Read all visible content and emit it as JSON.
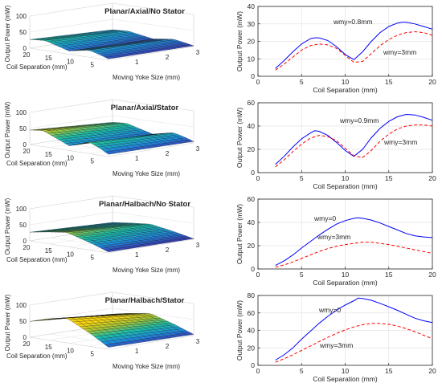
{
  "surface_axes": {
    "zlabel": "Output Power (mW)",
    "xlabel": "Coil Separation (mm)",
    "ylabel": "Moving Yoke Size (mm)",
    "z_ticks": [
      "0",
      "50",
      "100"
    ],
    "coil_ticks": [
      "20",
      "15",
      "10",
      "5"
    ],
    "yoke_ticks": [
      "1",
      "2",
      "3"
    ]
  },
  "chart_data": [
    {
      "type": "surface",
      "title": "Planar/Axial/No Stator",
      "xlabel": "Coil Separation (mm)",
      "ylabel": "Moving Yoke Size (mm)",
      "zlabel": "Output Power (mW)",
      "zlim": [
        0,
        100
      ],
      "colormap": "parula",
      "profile": [
        {
          "coil": 2,
          "power": 4
        },
        {
          "coil": 4,
          "power": 13
        },
        {
          "coil": 6.5,
          "power": 22
        },
        {
          "coil": 11,
          "power": 10
        },
        {
          "coil": 16.5,
          "power": 31
        },
        {
          "coil": 20,
          "power": 27
        }
      ]
    },
    {
      "type": "line",
      "xlabel": "Coil Separation (mm)",
      "ylabel": "Output Power (mW)",
      "xlim": [
        0,
        20
      ],
      "ylim": [
        0,
        40
      ],
      "xticks": [
        "0",
        "5",
        "10",
        "15",
        "20"
      ],
      "yticks": [
        "0",
        "10",
        "20",
        "30",
        "40"
      ],
      "grid": true,
      "series": [
        {
          "name": "wmy=0.8mm",
          "style": "solid",
          "color": "#0000ff",
          "x": [
            2,
            3,
            4,
            5,
            6,
            6.5,
            7,
            8,
            9,
            10,
            11,
            12,
            13,
            14,
            15,
            16,
            16.5,
            17,
            18,
            19,
            20
          ],
          "y": [
            4.5,
            9,
            14,
            18.5,
            21.5,
            22,
            22,
            20.5,
            17,
            12.5,
            9.5,
            14,
            20,
            25,
            28.5,
            30.5,
            31,
            31,
            30,
            28.5,
            27
          ]
        },
        {
          "name": "wmy=3mm",
          "style": "dashed",
          "color": "#ff0000",
          "x": [
            2,
            3,
            4,
            5,
            6,
            7,
            8,
            9,
            10,
            11,
            12,
            13,
            14,
            15,
            16,
            17,
            18,
            19,
            20
          ],
          "y": [
            3.5,
            7,
            11,
            15,
            17.5,
            18.5,
            18,
            16,
            12,
            8,
            8.5,
            13,
            17.5,
            21,
            23.5,
            25,
            25.5,
            25,
            23.5
          ]
        }
      ]
    },
    {
      "type": "surface",
      "title": "Planar/Axial/Stator",
      "xlabel": "Coil Separation (mm)",
      "ylabel": "Moving Yoke Size (mm)",
      "zlabel": "Output Power (mW)",
      "zlim": [
        0,
        100
      ],
      "colormap": "parula",
      "profile": [
        {
          "coil": 2,
          "power": 7
        },
        {
          "coil": 4,
          "power": 22
        },
        {
          "coil": 6.5,
          "power": 36
        },
        {
          "coil": 11,
          "power": 15
        },
        {
          "coil": 17,
          "power": 50
        },
        {
          "coil": 20,
          "power": 45
        }
      ]
    },
    {
      "type": "line",
      "xlabel": "Coil Separation (mm)",
      "ylabel": "Output Power (mW)",
      "xlim": [
        0,
        20
      ],
      "ylim": [
        0,
        60
      ],
      "xticks": [
        "0",
        "5",
        "10",
        "15",
        "20"
      ],
      "yticks": [
        "0",
        "20",
        "40",
        "60"
      ],
      "grid": true,
      "series": [
        {
          "name": "wmy=0.9mm",
          "style": "solid",
          "color": "#0000ff",
          "x": [
            2,
            3,
            4,
            5,
            6,
            6.5,
            7,
            8,
            9,
            10,
            11,
            12,
            13,
            14,
            15,
            16,
            17,
            18,
            19,
            20
          ],
          "y": [
            7,
            14,
            22,
            29,
            34,
            36,
            35.5,
            32,
            26,
            19,
            14,
            20,
            30,
            38,
            44,
            48,
            50,
            49.5,
            47.5,
            45
          ]
        },
        {
          "name": "wmy=3mm",
          "style": "dashed",
          "color": "#ff0000",
          "x": [
            2,
            3,
            4,
            5,
            6,
            7,
            8,
            9,
            10,
            11,
            12,
            13,
            14,
            15,
            16,
            17,
            18,
            19,
            20
          ],
          "y": [
            5,
            11,
            18,
            24.5,
            29.5,
            32,
            31,
            27.5,
            21,
            14.5,
            13,
            19,
            27,
            33,
            37.5,
            40,
            41,
            41,
            40
          ]
        }
      ]
    },
    {
      "type": "surface",
      "title": "Planar/Halbach/No Stator",
      "xlabel": "Coil Separation (mm)",
      "ylabel": "Moving Yoke Size (mm)",
      "zlabel": "Output Power (mW)",
      "zlim": [
        0,
        100
      ],
      "colormap": "parula",
      "profile": [
        {
          "coil": 2,
          "power": 3
        },
        {
          "coil": 6,
          "power": 22
        },
        {
          "coil": 11.5,
          "power": 44
        },
        {
          "coil": 16,
          "power": 36
        },
        {
          "coil": 20,
          "power": 27
        }
      ]
    },
    {
      "type": "line",
      "xlabel": "Coil Separation (mm)",
      "ylabel": "Output Power (mW)",
      "xlim": [
        0,
        20
      ],
      "ylim": [
        0,
        60
      ],
      "xticks": [
        "0",
        "5",
        "10",
        "15",
        "20"
      ],
      "yticks": [
        "0",
        "20",
        "40",
        "60"
      ],
      "grid": true,
      "series": [
        {
          "name": "wmy=0",
          "style": "solid",
          "color": "#0000ff",
          "x": [
            2,
            3,
            4,
            5,
            6,
            7,
            8,
            9,
            10,
            11,
            11.5,
            12,
            13,
            14,
            15,
            16,
            17,
            18,
            19,
            20
          ],
          "y": [
            3,
            7,
            12,
            18,
            23.5,
            29,
            34,
            38.5,
            41.5,
            43.5,
            44,
            43.5,
            42,
            39.5,
            36.5,
            33.5,
            30.5,
            28.5,
            27.5,
            27
          ]
        },
        {
          "name": "wmy=3mm",
          "style": "dashed",
          "color": "#ff0000",
          "x": [
            2,
            3,
            4,
            5,
            6,
            7,
            8,
            9,
            10,
            11,
            12,
            13,
            14,
            15,
            16,
            17,
            18,
            19,
            20
          ],
          "y": [
            1.5,
            3.5,
            6,
            9,
            12,
            15,
            17.5,
            19.5,
            21,
            22,
            23,
            23,
            22,
            21,
            19.5,
            18,
            16.5,
            15,
            13.5
          ]
        }
      ]
    },
    {
      "type": "surface",
      "title": "Planar/Halbach/Stator",
      "xlabel": "Coil Separation (mm)",
      "ylabel": "Moving Yoke Size (mm)",
      "zlabel": "Output Power (mW)",
      "zlim": [
        0,
        100
      ],
      "colormap": "parula",
      "profile": [
        {
          "coil": 2,
          "power": 6
        },
        {
          "coil": 6,
          "power": 39
        },
        {
          "coil": 11.5,
          "power": 77
        },
        {
          "coil": 16,
          "power": 65
        },
        {
          "coil": 20,
          "power": 49
        }
      ]
    },
    {
      "type": "line",
      "xlabel": "Coil Separation (mm)",
      "ylabel": "Output Power (mW)",
      "xlim": [
        0,
        20
      ],
      "ylim": [
        0,
        80
      ],
      "xticks": [
        "0",
        "5",
        "10",
        "15",
        "20"
      ],
      "yticks": [
        "0",
        "20",
        "40",
        "60",
        "80"
      ],
      "grid": true,
      "series": [
        {
          "name": "wmy=0",
          "style": "solid",
          "color": "#0000ff",
          "x": [
            2,
            3,
            4,
            5,
            6,
            7,
            8,
            9,
            10,
            11,
            11.5,
            12,
            13,
            14,
            15,
            16,
            17,
            18,
            19,
            20
          ],
          "y": [
            6,
            12,
            20,
            30,
            39,
            48,
            56,
            63,
            69,
            74,
            77,
            76.5,
            74.5,
            71,
            67,
            63,
            58.5,
            54,
            51,
            49
          ]
        },
        {
          "name": "wmy=3mm",
          "style": "dashed",
          "color": "#ff0000",
          "x": [
            2,
            3,
            4,
            5,
            6,
            7,
            8,
            9,
            10,
            11,
            12,
            13,
            14,
            15,
            16,
            17,
            18,
            19,
            20
          ],
          "y": [
            3.5,
            7.5,
            12,
            17,
            22,
            27,
            32,
            36.5,
            40.5,
            44,
            46.5,
            48,
            48,
            47,
            45,
            42,
            38.5,
            34.5,
            30.5
          ]
        }
      ]
    }
  ]
}
